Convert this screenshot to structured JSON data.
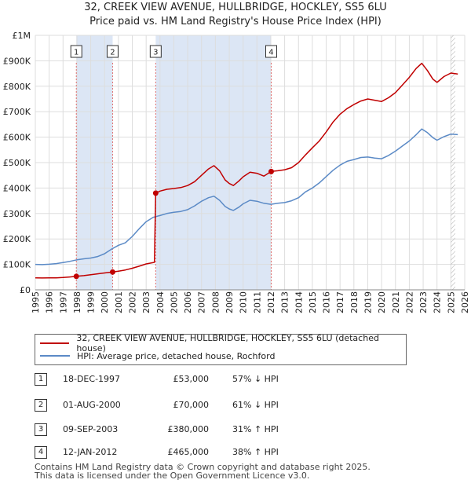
{
  "header": {
    "title_line1": "32, CREEK VIEW AVENUE, HULLBRIDGE, HOCKLEY, SS5 6LU",
    "title_line2": "Price paid vs. HM Land Registry's House Price Index (HPI)"
  },
  "colors": {
    "property": "#c00000",
    "hpi": "#5b8ac6",
    "shade": "#dce6f5",
    "grid": "#dddddd",
    "marker_line": "#e07070"
  },
  "chart_data": {
    "type": "line",
    "xlim": [
      1995,
      2026
    ],
    "ylim": [
      0,
      1000000
    ],
    "x_ticks": [
      "1995",
      "1996",
      "1997",
      "1998",
      "1999",
      "2000",
      "2001",
      "2002",
      "2003",
      "2004",
      "2005",
      "2006",
      "2007",
      "2008",
      "2009",
      "2010",
      "2011",
      "2012",
      "2013",
      "2014",
      "2015",
      "2016",
      "2017",
      "2018",
      "2019",
      "2020",
      "2021",
      "2022",
      "2023",
      "2024",
      "2025",
      "2026"
    ],
    "y_ticks": [
      {
        "value": 0,
        "label": "£0"
      },
      {
        "value": 100000,
        "label": "£100K"
      },
      {
        "value": 200000,
        "label": "£200K"
      },
      {
        "value": 300000,
        "label": "£300K"
      },
      {
        "value": 400000,
        "label": "£400K"
      },
      {
        "value": 500000,
        "label": "£500K"
      },
      {
        "value": 600000,
        "label": "£600K"
      },
      {
        "value": 700000,
        "label": "£700K"
      },
      {
        "value": 800000,
        "label": "£800K"
      },
      {
        "value": 900000,
        "label": "£900K"
      },
      {
        "value": 1000000,
        "label": "£1M"
      }
    ],
    "shaded_ranges": [
      [
        1997.96,
        2000.58
      ],
      [
        2003.69,
        2012.03
      ]
    ],
    "forecast_from": 2025.0,
    "sale_markers": [
      {
        "label": "1",
        "x": 1997.96,
        "y": 53000
      },
      {
        "label": "2",
        "x": 2000.58,
        "y": 70000
      },
      {
        "label": "3",
        "x": 2003.69,
        "y": 380000
      },
      {
        "label": "4",
        "x": 2012.03,
        "y": 465000
      }
    ],
    "series": [
      {
        "name": "32, CREEK VIEW AVENUE, HULLBRIDGE, HOCKLEY, SS5 6LU (detached house)",
        "key": "property",
        "points": [
          [
            1995.0,
            47000
          ],
          [
            1995.5,
            46500
          ],
          [
            1996.0,
            46800
          ],
          [
            1996.5,
            47200
          ],
          [
            1997.0,
            48500
          ],
          [
            1997.5,
            50500
          ],
          [
            1997.96,
            53000
          ],
          [
            1998.5,
            56000
          ],
          [
            1999.0,
            59500
          ],
          [
            1999.5,
            63000
          ],
          [
            2000.0,
            66500
          ],
          [
            2000.58,
            70000
          ],
          [
            2001.0,
            73500
          ],
          [
            2001.5,
            78000
          ],
          [
            2002.0,
            85000
          ],
          [
            2002.5,
            93000
          ],
          [
            2003.0,
            102000
          ],
          [
            2003.6,
            108000
          ],
          [
            2003.69,
            380000
          ],
          [
            2004.0,
            388000
          ],
          [
            2004.5,
            395000
          ],
          [
            2005.0,
            398000
          ],
          [
            2005.5,
            402000
          ],
          [
            2006.0,
            410000
          ],
          [
            2006.5,
            425000
          ],
          [
            2007.0,
            450000
          ],
          [
            2007.5,
            475000
          ],
          [
            2007.9,
            488000
          ],
          [
            2008.3,
            468000
          ],
          [
            2008.7,
            432000
          ],
          [
            2009.0,
            418000
          ],
          [
            2009.3,
            410000
          ],
          [
            2009.7,
            428000
          ],
          [
            2010.0,
            444000
          ],
          [
            2010.5,
            462000
          ],
          [
            2011.0,
            458000
          ],
          [
            2011.5,
            447000
          ],
          [
            2012.03,
            465000
          ],
          [
            2012.5,
            468000
          ],
          [
            2013.0,
            472000
          ],
          [
            2013.5,
            480000
          ],
          [
            2014.0,
            500000
          ],
          [
            2014.5,
            530000
          ],
          [
            2015.0,
            558000
          ],
          [
            2015.5,
            585000
          ],
          [
            2016.0,
            620000
          ],
          [
            2016.5,
            660000
          ],
          [
            2017.0,
            690000
          ],
          [
            2017.5,
            712000
          ],
          [
            2018.0,
            728000
          ],
          [
            2018.5,
            742000
          ],
          [
            2019.0,
            750000
          ],
          [
            2019.5,
            745000
          ],
          [
            2020.0,
            740000
          ],
          [
            2020.5,
            755000
          ],
          [
            2021.0,
            775000
          ],
          [
            2021.5,
            805000
          ],
          [
            2022.0,
            835000
          ],
          [
            2022.5,
            870000
          ],
          [
            2022.9,
            890000
          ],
          [
            2023.3,
            862000
          ],
          [
            2023.7,
            828000
          ],
          [
            2024.0,
            815000
          ],
          [
            2024.5,
            838000
          ],
          [
            2025.0,
            852000
          ],
          [
            2025.5,
            848000
          ]
        ]
      },
      {
        "name": "HPI: Average price, detached house, Rochford",
        "key": "hpi",
        "points": [
          [
            1995.0,
            100000
          ],
          [
            1995.5,
            99000
          ],
          [
            1996.0,
            100500
          ],
          [
            1996.5,
            103000
          ],
          [
            1997.0,
            107000
          ],
          [
            1997.5,
            112000
          ],
          [
            1998.0,
            118000
          ],
          [
            1998.5,
            122000
          ],
          [
            1999.0,
            125000
          ],
          [
            1999.5,
            131000
          ],
          [
            2000.0,
            142000
          ],
          [
            2000.5,
            160000
          ],
          [
            2001.0,
            175000
          ],
          [
            2001.5,
            185000
          ],
          [
            2002.0,
            210000
          ],
          [
            2002.5,
            240000
          ],
          [
            2003.0,
            268000
          ],
          [
            2003.5,
            285000
          ],
          [
            2004.0,
            292000
          ],
          [
            2004.5,
            300000
          ],
          [
            2005.0,
            305000
          ],
          [
            2005.5,
            308000
          ],
          [
            2006.0,
            315000
          ],
          [
            2006.5,
            330000
          ],
          [
            2007.0,
            348000
          ],
          [
            2007.5,
            362000
          ],
          [
            2007.9,
            368000
          ],
          [
            2008.3,
            352000
          ],
          [
            2008.7,
            328000
          ],
          [
            2009.0,
            318000
          ],
          [
            2009.3,
            312000
          ],
          [
            2009.7,
            325000
          ],
          [
            2010.0,
            338000
          ],
          [
            2010.5,
            352000
          ],
          [
            2011.0,
            348000
          ],
          [
            2011.5,
            340000
          ],
          [
            2012.0,
            336000
          ],
          [
            2012.5,
            340000
          ],
          [
            2013.0,
            343000
          ],
          [
            2013.5,
            350000
          ],
          [
            2014.0,
            362000
          ],
          [
            2014.5,
            385000
          ],
          [
            2015.0,
            400000
          ],
          [
            2015.5,
            420000
          ],
          [
            2016.0,
            445000
          ],
          [
            2016.5,
            470000
          ],
          [
            2017.0,
            490000
          ],
          [
            2017.5,
            505000
          ],
          [
            2018.0,
            512000
          ],
          [
            2018.5,
            520000
          ],
          [
            2019.0,
            522000
          ],
          [
            2019.5,
            518000
          ],
          [
            2020.0,
            515000
          ],
          [
            2020.5,
            528000
          ],
          [
            2021.0,
            545000
          ],
          [
            2021.5,
            565000
          ],
          [
            2022.0,
            585000
          ],
          [
            2022.5,
            610000
          ],
          [
            2022.9,
            632000
          ],
          [
            2023.3,
            618000
          ],
          [
            2023.7,
            598000
          ],
          [
            2024.0,
            588000
          ],
          [
            2024.5,
            602000
          ],
          [
            2025.0,
            612000
          ],
          [
            2025.5,
            610000
          ]
        ]
      }
    ]
  },
  "legend": {
    "property_label": "32, CREEK VIEW AVENUE, HULLBRIDGE, HOCKLEY, SS5 6LU (detached house)",
    "hpi_label": "HPI: Average price, detached house, Rochford"
  },
  "sales": [
    {
      "num": "1",
      "date": "18-DEC-1997",
      "price": "£53,000",
      "hpi": "57% ↓ HPI"
    },
    {
      "num": "2",
      "date": "01-AUG-2000",
      "price": "£70,000",
      "hpi": "61% ↓ HPI"
    },
    {
      "num": "3",
      "date": "09-SEP-2003",
      "price": "£380,000",
      "hpi": "31% ↑ HPI"
    },
    {
      "num": "4",
      "date": "12-JAN-2012",
      "price": "£465,000",
      "hpi": "38% ↑ HPI"
    }
  ],
  "footer": {
    "line1": "Contains HM Land Registry data © Crown copyright and database right 2025.",
    "line2": "This data is licensed under the Open Government Licence v3.0."
  }
}
